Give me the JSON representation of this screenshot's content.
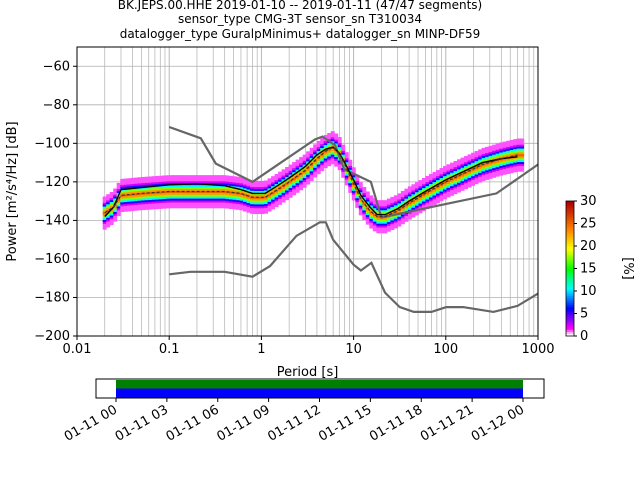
{
  "header": {
    "title_lines": [
      "BK.JEPS.00.HHE   2019-01-10 -- 2019-01-11  (47/47 segments)",
      "sensor_type CMG-3T sensor_sn T310034",
      "datalogger_type GuralpMinimus+ datalogger_sn MINP-DF59"
    ]
  },
  "chart_data": {
    "type": "heatmap",
    "xlabel": "Period [s]",
    "ylabel": "Power [m²/s⁴/Hz] [dB]",
    "xscale": "log",
    "xlim": [
      0.01,
      1000
    ],
    "ylim": [
      -200,
      -50
    ],
    "x_ticks": [
      0.01,
      0.1,
      1,
      10,
      100,
      1000
    ],
    "x_tick_labels": [
      "0.01",
      "0.1",
      "1",
      "10",
      "100",
      "1000"
    ],
    "y_ticks": [
      -200,
      -180,
      -160,
      -140,
      -120,
      -100,
      -80,
      -60
    ],
    "y_tick_labels": [
      "−200",
      "−180",
      "−160",
      "−140",
      "−120",
      "−100",
      "−80",
      "−60"
    ],
    "grid": true,
    "colorbar": {
      "label": "[%]",
      "range": [
        0,
        30
      ],
      "ticks": [
        "0",
        "5",
        "10",
        "15",
        "20",
        "25",
        "30"
      ]
    },
    "noise_model_high": [
      [
        0.1,
        -91.5
      ],
      [
        0.22,
        -97.4
      ],
      [
        0.32,
        -110.5
      ],
      [
        0.8,
        -120
      ],
      [
        3.8,
        -98
      ],
      [
        4.6,
        -96.5
      ],
      [
        6.3,
        -101
      ],
      [
        7.9,
        -113.5
      ],
      [
        15.4,
        -120
      ],
      [
        20,
        -138.5
      ],
      [
        354.8,
        -126
      ],
      [
        1000,
        -111
      ]
    ],
    "noise_model_low": [
      [
        0.1,
        -168
      ],
      [
        0.17,
        -166.7
      ],
      [
        0.4,
        -166.7
      ],
      [
        0.8,
        -169.2
      ],
      [
        1.24,
        -163.7
      ],
      [
        2.4,
        -148
      ],
      [
        4.3,
        -141
      ],
      [
        5,
        -141
      ],
      [
        6,
        -150
      ],
      [
        10,
        -163
      ],
      [
        12,
        -166
      ],
      [
        15.6,
        -162
      ],
      [
        21.9,
        -177.5
      ],
      [
        31.6,
        -185
      ],
      [
        45,
        -187.5
      ],
      [
        70,
        -187.5
      ],
      [
        101,
        -185
      ],
      [
        154,
        -185
      ],
      [
        328,
        -187.5
      ],
      [
        600,
        -184.4
      ],
      [
        1000,
        -178
      ]
    ],
    "mean_curve": [
      [
        0.02,
        -138
      ],
      [
        0.025,
        -133
      ],
      [
        0.03,
        -124
      ],
      [
        0.05,
        -123
      ],
      [
        0.1,
        -121.5
      ],
      [
        0.2,
        -121
      ],
      [
        0.4,
        -122
      ],
      [
        0.6,
        -124
      ],
      [
        0.8,
        -126
      ],
      [
        1.1,
        -126
      ],
      [
        1.5,
        -122
      ],
      [
        2,
        -118
      ],
      [
        3,
        -112
      ],
      [
        4,
        -106
      ],
      [
        5,
        -103
      ],
      [
        6,
        -102
      ],
      [
        7,
        -105
      ],
      [
        8,
        -110
      ],
      [
        10,
        -119
      ],
      [
        12,
        -127
      ],
      [
        15,
        -133
      ],
      [
        18,
        -137
      ],
      [
        22,
        -137
      ],
      [
        30,
        -134
      ],
      [
        40,
        -130
      ],
      [
        60,
        -125
      ],
      [
        100,
        -119
      ],
      [
        150,
        -115
      ],
      [
        250,
        -110
      ],
      [
        400,
        -108
      ],
      [
        600,
        -107
      ]
    ],
    "mode_curve": [
      [
        0.02,
        -136
      ],
      [
        0.025,
        -133
      ],
      [
        0.03,
        -127
      ],
      [
        0.05,
        -126
      ],
      [
        0.1,
        -125
      ],
      [
        0.2,
        -125
      ],
      [
        0.4,
        -125
      ],
      [
        0.6,
        -126
      ],
      [
        0.8,
        -128
      ],
      [
        1.1,
        -128
      ],
      [
        1.5,
        -124
      ],
      [
        2,
        -120
      ],
      [
        3,
        -114
      ],
      [
        4,
        -108
      ],
      [
        5,
        -104
      ],
      [
        6,
        -102
      ],
      [
        7,
        -105
      ],
      [
        8,
        -111
      ],
      [
        10,
        -121
      ],
      [
        12,
        -129
      ],
      [
        15,
        -135
      ],
      [
        18,
        -138
      ],
      [
        22,
        -138
      ],
      [
        30,
        -135
      ],
      [
        40,
        -131
      ],
      [
        60,
        -126
      ],
      [
        100,
        -120
      ],
      [
        150,
        -116
      ],
      [
        250,
        -111
      ],
      [
        400,
        -108
      ],
      [
        600,
        -106
      ]
    ],
    "heat_band": {
      "x_range": [
        0.019,
        700
      ],
      "spread": 8
    },
    "timeline": {
      "ticks": [
        "01-11 00",
        "01-11 03",
        "01-11 06",
        "01-11 09",
        "01-11 12",
        "01-11 15",
        "01-11 18",
        "01-11 21",
        "01-12 00"
      ],
      "bar_colors": [
        "#008000",
        "#0000ff"
      ]
    }
  }
}
